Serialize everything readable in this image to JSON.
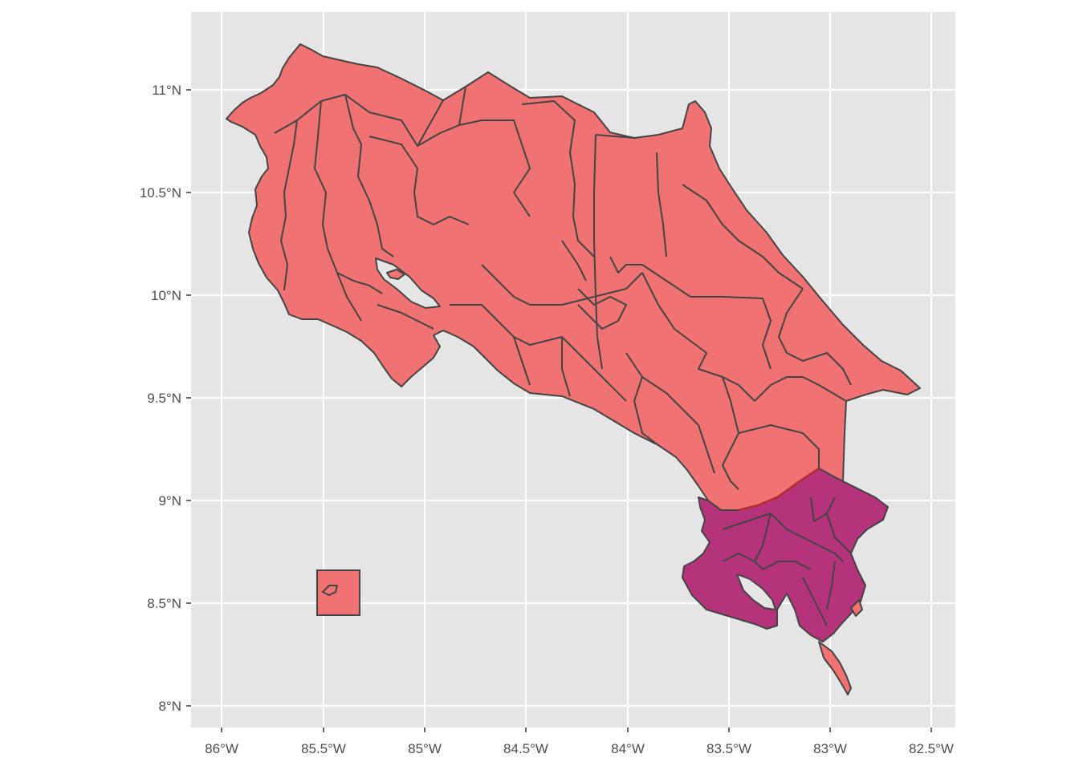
{
  "map": {
    "colors": {
      "panel_background": "#e5e5e5",
      "grid_line": "#ffffff",
      "tick_text": "#4d4d4d",
      "border": "#444444",
      "region_fill": "#f07272",
      "highlight_fill": "#b5337a",
      "highlight_outline": "#b52a2a"
    },
    "x_axis": {
      "ticks": [
        "86°W",
        "85.5°W",
        "85°W",
        "84.5°W",
        "84°W",
        "83.5°W",
        "83°W",
        "82.5°W"
      ]
    },
    "y_axis": {
      "ticks": [
        "11°N",
        "10.5°N",
        "10°N",
        "9.5°N",
        "9°N",
        "8.5°N",
        "8°N"
      ]
    },
    "layers": {
      "main_regions": "Costa Rica cantons",
      "highlighted_regions": "southern cantons",
      "inset": "Cocos Island inset"
    }
  }
}
